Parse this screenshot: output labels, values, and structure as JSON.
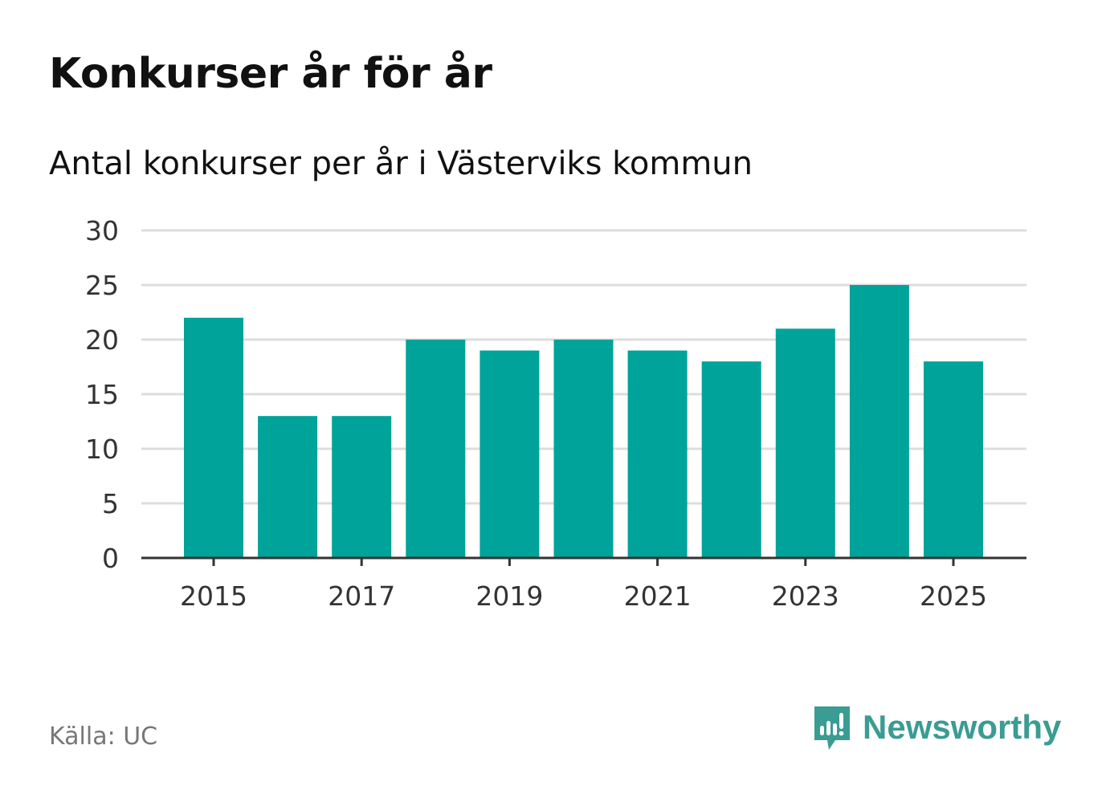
{
  "title": "Konkurser år för år",
  "subtitle": "Antal konkurser per år i Västerviks kommun",
  "source": "Källa: UC",
  "brand": {
    "name": "Newsworthy",
    "icon": "newsworthy-logo-icon",
    "color": "#3a9c93"
  },
  "colors": {
    "bar": "#00a39a",
    "grid": "#dddddd",
    "axis": "#333333",
    "text": "#333333"
  },
  "chart_data": {
    "type": "bar",
    "categories": [
      "2015",
      "2016",
      "2017",
      "2018",
      "2019",
      "2020",
      "2021",
      "2022",
      "2023",
      "2024",
      "2025"
    ],
    "values": [
      22,
      13,
      13,
      20,
      19,
      20,
      19,
      18,
      21,
      25,
      18
    ],
    "x_tick_labels": [
      "2015",
      "2017",
      "2019",
      "2021",
      "2023",
      "2025"
    ],
    "y_ticks": [
      0,
      5,
      10,
      15,
      20,
      25,
      30
    ],
    "ylim": [
      0,
      30
    ],
    "xlabel": "",
    "ylabel": "",
    "grid": true,
    "legend": "none"
  }
}
